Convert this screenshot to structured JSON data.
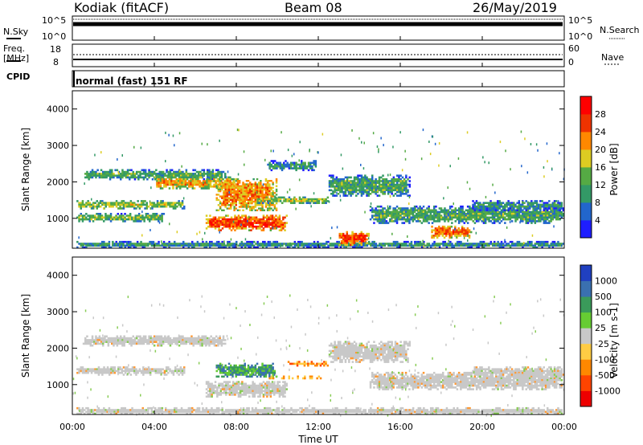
{
  "header": {
    "station": "Kodiak (fitACF)",
    "beam": "Beam 08",
    "date": "26/May/2019"
  },
  "top_panels": {
    "nsky_label": "N.Sky",
    "nsky_ticks": [
      "10^5",
      "10^0"
    ],
    "nsearch_label": "N.Search",
    "nsearch_ticks": [
      "10^5",
      "10^0"
    ],
    "freq_label": "Freq.",
    "freq_unit": "[MHz]",
    "freq_ticks": [
      "18",
      "8"
    ],
    "nave_label": "Nave",
    "nave_ticks": [
      "60",
      "0"
    ],
    "cpid_label": "CPID",
    "cpid_value": "normal (fast) 151 RF"
  },
  "chart_data": [
    {
      "type": "heatmap",
      "panel": "power",
      "ylabel": "Slant Range [km]",
      "ylim": [
        180,
        4500
      ],
      "yticks": [
        1000,
        2000,
        3000,
        4000
      ],
      "xlim": [
        0,
        24
      ],
      "colorbar_label": "Power [dB]",
      "colorbar_ticks": [
        "4",
        "8",
        "12",
        "16",
        "20",
        "24",
        "28"
      ],
      "colorbar_range": [
        0,
        32
      ],
      "colors": [
        "#1e1eff",
        "#2266cc",
        "#339966",
        "#55aa44",
        "#ddcc22",
        "#ff8800",
        "#ee3300",
        "#ff0000"
      ],
      "echo_bands": [
        {
          "t": [
            0.2,
            24
          ],
          "r": [
            180,
            380
          ],
          "level": 10
        },
        {
          "t": [
            0.2,
            5.5
          ],
          "r": [
            1250,
            1500
          ],
          "level": 16
        },
        {
          "t": [
            0.2,
            4.5
          ],
          "r": [
            900,
            1150
          ],
          "level": 14
        },
        {
          "t": [
            0.5,
            7.5
          ],
          "r": [
            2050,
            2350
          ],
          "level": 12
        },
        {
          "t": [
            4.0,
            8.0
          ],
          "r": [
            1800,
            2150
          ],
          "level": 20
        },
        {
          "t": [
            6.5,
            10.5
          ],
          "r": [
            650,
            1100
          ],
          "level": 26
        },
        {
          "t": [
            7.0,
            10.0
          ],
          "r": [
            1200,
            2100
          ],
          "level": 22
        },
        {
          "t": [
            9.0,
            12.5
          ],
          "r": [
            1400,
            1600
          ],
          "level": 16
        },
        {
          "t": [
            9.5,
            12.0
          ],
          "r": [
            2300,
            2600
          ],
          "level": 10
        },
        {
          "t": [
            13.0,
            14.5
          ],
          "r": [
            250,
            650
          ],
          "level": 26
        },
        {
          "t": [
            12.5,
            16.5
          ],
          "r": [
            1600,
            2200
          ],
          "level": 12
        },
        {
          "t": [
            14.5,
            24
          ],
          "r": [
            850,
            1350
          ],
          "level": 12
        },
        {
          "t": [
            17.5,
            19.5
          ],
          "r": [
            450,
            800
          ],
          "level": 24
        },
        {
          "t": [
            19.5,
            24
          ],
          "r": [
            1200,
            1500
          ],
          "level": 10
        }
      ]
    },
    {
      "type": "heatmap",
      "panel": "velocity",
      "ylabel": "Slant Range [km]",
      "xlabel": "Time UT",
      "ylim": [
        180,
        4500
      ],
      "yticks": [
        1000,
        2000,
        3000,
        4000
      ],
      "xlim": [
        0,
        24
      ],
      "xticks": [
        "00:00",
        "04:00",
        "08:00",
        "12:00",
        "16:00",
        "20:00",
        "00:00"
      ],
      "colorbar_label": "Velocity [m s-1]",
      "colorbar_ticks": [
        "1000",
        "500",
        "100",
        "25",
        "-25",
        "-100",
        "-500",
        "-1000"
      ],
      "colors": [
        "#2040c0",
        "#3a70b0",
        "#3a9a5a",
        "#66cc33",
        "#c8c8c8",
        "#ffcc44",
        "#ff8800",
        "#ff4400",
        "#ee0000"
      ],
      "echo_bands": [
        {
          "t": [
            0.2,
            24
          ],
          "r": [
            180,
            380
          ],
          "level": "ground"
        },
        {
          "t": [
            0.2,
            5.5
          ],
          "r": [
            1250,
            1500
          ],
          "level": "ground"
        },
        {
          "t": [
            0.5,
            7.5
          ],
          "r": [
            2050,
            2350
          ],
          "level": "ground"
        },
        {
          "t": [
            6.5,
            10.5
          ],
          "r": [
            650,
            1100
          ],
          "level": "ground"
        },
        {
          "t": [
            7.0,
            10.0
          ],
          "r": [
            1200,
            1600
          ],
          "level": "positive"
        },
        {
          "t": [
            10.5,
            12.5
          ],
          "r": [
            1500,
            1650
          ],
          "level": "negative"
        },
        {
          "t": [
            9.5,
            12.5
          ],
          "r": [
            1150,
            1250
          ],
          "level": "neg_small"
        },
        {
          "t": [
            12.5,
            16.5
          ],
          "r": [
            1600,
            2200
          ],
          "level": "ground"
        },
        {
          "t": [
            14.5,
            24
          ],
          "r": [
            850,
            1350
          ],
          "level": "ground"
        },
        {
          "t": [
            19.5,
            24
          ],
          "r": [
            1200,
            1500
          ],
          "level": "ground"
        }
      ]
    }
  ]
}
